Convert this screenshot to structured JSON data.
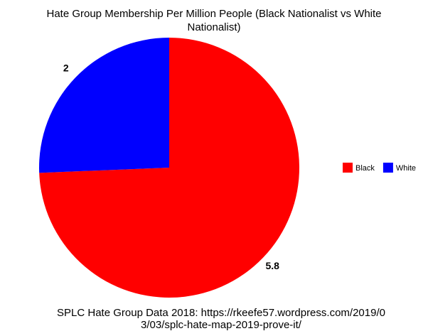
{
  "chart_data": {
    "type": "pie",
    "title": "Hate Group Membership Per Million People (Black Nationalist vs White Nationalist)",
    "caption": "SPLC Hate Group Data 2018: https://rkeefe57.wordpress.com/2019/03/03/splc-hate-map-2019-prove-it/",
    "categories": [
      "Black",
      "White"
    ],
    "values": [
      5.8,
      2
    ],
    "colors": [
      "#ff0000",
      "#0000ff"
    ],
    "legend": "right"
  }
}
